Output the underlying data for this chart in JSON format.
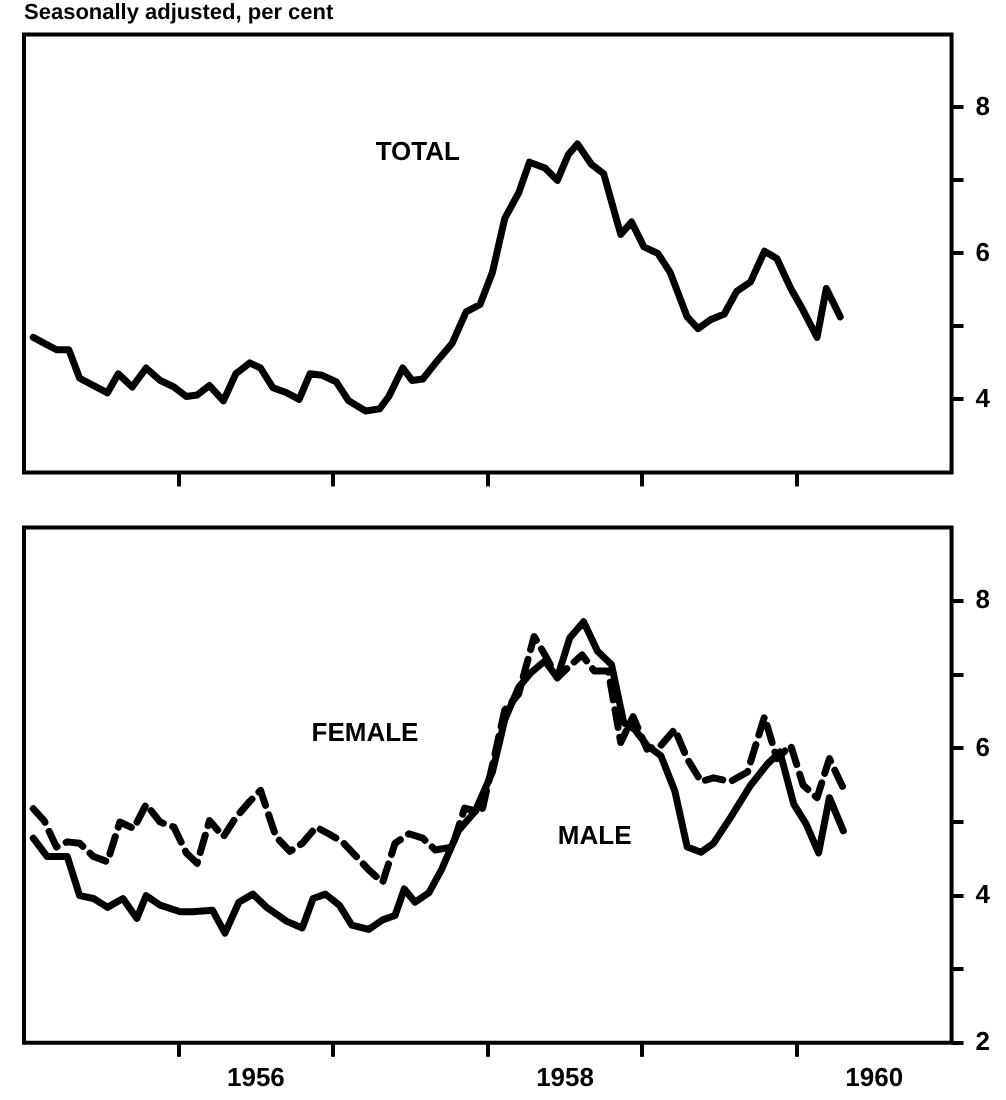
{
  "chart_data": [
    {
      "type": "line",
      "title": "Seasonally adjusted, per cent",
      "xlim": [
        1955,
        1961
      ],
      "ylim": [
        3,
        9
      ],
      "xticks": [
        {
          "value": 1956,
          "label": null
        },
        {
          "value": 1957,
          "label": null
        },
        {
          "value": 1958,
          "label": null
        },
        {
          "value": 1959,
          "label": null
        },
        {
          "value": 1960,
          "label": null
        }
      ],
      "yticks": [
        {
          "value": 4,
          "label": "4"
        },
        {
          "value": 5,
          "label": null
        },
        {
          "value": 6,
          "label": "6"
        },
        {
          "value": 7,
          "label": null
        },
        {
          "value": 8,
          "label": "8"
        }
      ],
      "tick_labels": "y",
      "series": [
        {
          "name": "TOTAL",
          "color": "#000000",
          "line_style": "solid",
          "x": [
            1955.06,
            1955.21,
            1955.29,
            1955.36,
            1955.54,
            1955.61,
            1955.7,
            1955.79,
            1955.88,
            1955.97,
            1956.05,
            1956.12,
            1956.2,
            1956.29,
            1956.37,
            1956.46,
            1956.53,
            1956.61,
            1956.7,
            1956.78,
            1956.85,
            1956.93,
            1957.02,
            1957.1,
            1957.21,
            1957.3,
            1957.36,
            1957.45,
            1957.51,
            1957.58,
            1957.67,
            1957.77,
            1957.86,
            1957.95,
            1958.03,
            1958.11,
            1958.2,
            1958.27,
            1958.37,
            1958.45,
            1958.52,
            1958.58,
            1958.67,
            1958.75,
            1958.86,
            1958.93,
            1959.01,
            1959.1,
            1959.18,
            1959.29,
            1959.36,
            1959.44,
            1959.53,
            1959.61,
            1959.7,
            1959.79,
            1959.87,
            1959.96,
            1960.04,
            1960.13,
            1960.19,
            1960.28
          ],
          "values": [
            4.85,
            4.68,
            4.68,
            4.29,
            4.09,
            4.35,
            4.17,
            4.43,
            4.26,
            4.17,
            4.04,
            4.06,
            4.19,
            3.98,
            4.35,
            4.5,
            4.43,
            4.16,
            4.09,
            4.0,
            4.35,
            4.33,
            4.24,
            3.98,
            3.84,
            3.87,
            4.04,
            4.43,
            4.26,
            4.28,
            4.52,
            4.77,
            5.2,
            5.3,
            5.74,
            6.48,
            6.83,
            7.25,
            7.17,
            7.0,
            7.35,
            7.5,
            7.22,
            7.09,
            6.26,
            6.43,
            6.09,
            6.0,
            5.74,
            5.13,
            4.97,
            5.09,
            5.17,
            5.48,
            5.61,
            6.03,
            5.93,
            5.52,
            5.22,
            4.85,
            5.52,
            5.13
          ]
        }
      ]
    },
    {
      "type": "line",
      "xlim": [
        1955,
        1961
      ],
      "ylim": [
        2,
        9
      ],
      "xticks": [
        {
          "value": 1956,
          "label": null
        },
        {
          "value": 1956.5,
          "label": "1956"
        },
        {
          "value": 1957,
          "label": null
        },
        {
          "value": 1958,
          "label": null
        },
        {
          "value": 1958.5,
          "label": "1958"
        },
        {
          "value": 1959,
          "label": null
        },
        {
          "value": 1960,
          "label": null
        },
        {
          "value": 1960.5,
          "label": "1960"
        }
      ],
      "yticks": [
        {
          "value": 2,
          "label": "2"
        },
        {
          "value": 3,
          "label": null
        },
        {
          "value": 4,
          "label": "4"
        },
        {
          "value": 5,
          "label": null
        },
        {
          "value": 6,
          "label": "6"
        },
        {
          "value": 7,
          "label": null
        },
        {
          "value": 8,
          "label": "8"
        }
      ],
      "series": [
        {
          "name": "MALE",
          "color": "#000000",
          "line_style": "solid",
          "x": [
            1955.06,
            1955.15,
            1955.28,
            1955.36,
            1955.45,
            1955.54,
            1955.64,
            1955.73,
            1955.79,
            1955.88,
            1956.01,
            1956.09,
            1956.22,
            1956.3,
            1956.39,
            1956.48,
            1956.57,
            1956.7,
            1956.8,
            1956.87,
            1956.95,
            1957.04,
            1957.12,
            1957.23,
            1957.32,
            1957.4,
            1957.46,
            1957.53,
            1957.62,
            1957.7,
            1957.81,
            1957.92,
            1958.03,
            1958.11,
            1958.2,
            1958.28,
            1958.37,
            1958.45,
            1958.53,
            1958.62,
            1958.71,
            1958.8,
            1958.88,
            1958.95,
            1959.03,
            1959.12,
            1959.21,
            1959.29,
            1959.38,
            1959.46,
            1959.57,
            1959.7,
            1959.81,
            1959.89,
            1959.98,
            1960.06,
            1960.14,
            1960.21,
            1960.3
          ],
          "values": [
            4.78,
            4.53,
            4.53,
            4.0,
            3.96,
            3.84,
            3.96,
            3.69,
            4.0,
            3.87,
            3.78,
            3.78,
            3.8,
            3.49,
            3.91,
            4.02,
            3.84,
            3.65,
            3.56,
            3.96,
            4.02,
            3.87,
            3.6,
            3.54,
            3.67,
            3.73,
            4.09,
            3.91,
            4.04,
            4.35,
            4.88,
            5.15,
            5.68,
            6.39,
            6.83,
            7.03,
            7.19,
            6.96,
            7.5,
            7.72,
            7.32,
            7.14,
            6.35,
            6.26,
            6.04,
            5.9,
            5.42,
            4.66,
            4.59,
            4.71,
            5.06,
            5.5,
            5.79,
            5.95,
            5.24,
            4.97,
            4.58,
            5.33,
            4.88
          ]
        },
        {
          "name": "FEMALE",
          "color": "#000000",
          "line_style": "dashed",
          "x": [
            1955.06,
            1955.13,
            1955.21,
            1955.28,
            1955.36,
            1955.45,
            1955.54,
            1955.62,
            1955.71,
            1955.79,
            1955.88,
            1955.97,
            1956.05,
            1956.12,
            1956.2,
            1956.29,
            1956.37,
            1956.46,
            1956.53,
            1956.63,
            1956.72,
            1956.8,
            1956.89,
            1956.97,
            1957.06,
            1957.15,
            1957.23,
            1957.32,
            1957.4,
            1957.49,
            1957.58,
            1957.66,
            1957.77,
            1957.85,
            1957.96,
            1958.03,
            1958.11,
            1958.2,
            1958.3,
            1958.37,
            1958.45,
            1958.52,
            1958.61,
            1958.69,
            1958.78,
            1958.86,
            1958.94,
            1959.03,
            1959.12,
            1959.21,
            1959.29,
            1959.38,
            1959.46,
            1959.57,
            1959.68,
            1959.79,
            1959.87,
            1959.96,
            1960.04,
            1960.13,
            1960.21,
            1960.3
          ],
          "values": [
            5.18,
            5.02,
            4.66,
            4.73,
            4.71,
            4.53,
            4.46,
            5.0,
            4.91,
            5.24,
            5.0,
            4.93,
            4.58,
            4.44,
            5.02,
            4.8,
            5.06,
            5.28,
            5.43,
            4.8,
            4.6,
            4.71,
            4.93,
            4.84,
            4.73,
            4.53,
            4.35,
            4.18,
            4.71,
            4.84,
            4.78,
            4.62,
            4.66,
            5.19,
            5.13,
            5.77,
            6.52,
            6.74,
            7.52,
            7.27,
            6.96,
            7.1,
            7.27,
            7.05,
            7.05,
            6.08,
            6.43,
            5.99,
            6.04,
            6.26,
            5.86,
            5.55,
            5.6,
            5.55,
            5.68,
            6.43,
            5.86,
            6.04,
            5.5,
            5.33,
            5.86,
            5.46
          ]
        }
      ]
    }
  ]
}
